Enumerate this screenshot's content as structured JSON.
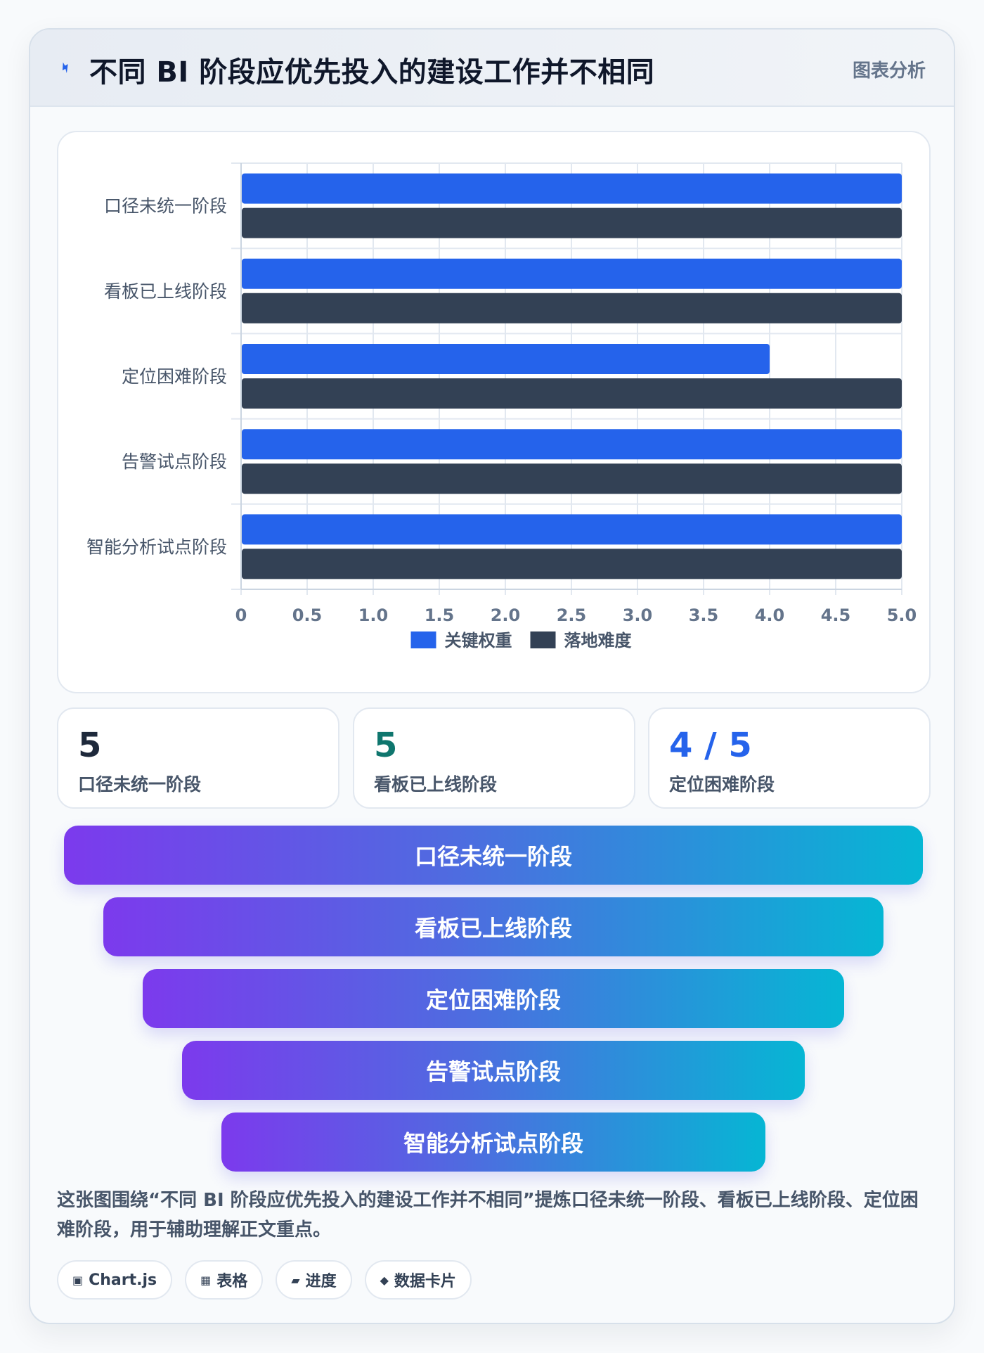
{
  "header": {
    "title": "不同 BI 阶段应优先投入的建设工作并不相同",
    "badge": "图表分析",
    "icon": "bolt-icon"
  },
  "chart_data": {
    "type": "bar",
    "orientation": "horizontal",
    "categories": [
      "口径未统一阶段",
      "看板已上线阶段",
      "定位困难阶段",
      "告警试点阶段",
      "智能分析试点阶段"
    ],
    "series": [
      {
        "name": "关键权重",
        "color": "#2563eb",
        "values": [
          5,
          5,
          4,
          5,
          5
        ]
      },
      {
        "name": "落地难度",
        "color": "#334155",
        "values": [
          5,
          5,
          5,
          5,
          5
        ]
      }
    ],
    "xlim": [
      0,
      5
    ],
    "xticks": [
      "0",
      "0.5",
      "1.0",
      "1.5",
      "2.0",
      "2.5",
      "3.0",
      "3.5",
      "4.0",
      "4.5",
      "5.0"
    ],
    "grid": true,
    "legend": "bottom"
  },
  "stats": [
    {
      "value": "5",
      "label": "口径未统一阶段",
      "color": "#1e293b"
    },
    {
      "value": "5",
      "label": "看板已上线阶段",
      "color": "#0f766e"
    },
    {
      "value": "4 / 5",
      "label": "定位困难阶段",
      "color": "#2563eb"
    }
  ],
  "funnel": [
    "口径未统一阶段",
    "看板已上线阶段",
    "定位困难阶段",
    "告警试点阶段",
    "智能分析试点阶段"
  ],
  "description": "这张图围绕“不同 BI 阶段应优先投入的建设工作并不相同”提炼口径未统一阶段、看板已上线阶段、定位困难阶段，用于辅助理解正文重点。",
  "chips": [
    {
      "icon": "▣",
      "label": "Chart.js"
    },
    {
      "icon": "▦",
      "label": "表格"
    },
    {
      "icon": "▰",
      "label": "进度"
    },
    {
      "icon": "◆",
      "label": "数据卡片"
    }
  ]
}
